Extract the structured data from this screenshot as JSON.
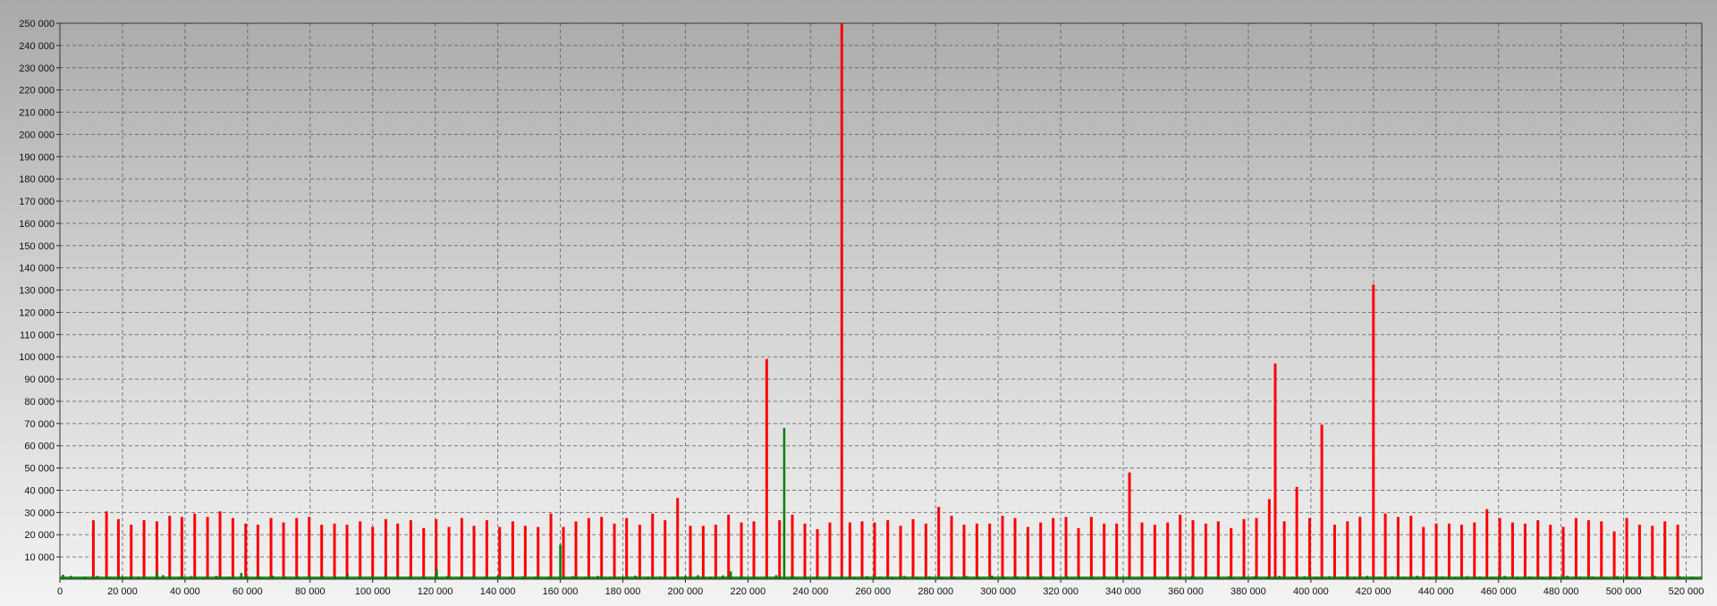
{
  "chart_data": {
    "type": "bar",
    "title": "",
    "xlabel": "",
    "ylabel": "",
    "xlim": [
      0,
      525000
    ],
    "ylim": [
      0,
      250000
    ],
    "grid": true,
    "legend": "none",
    "x_ticks": [
      "0",
      "20 000",
      "40 000",
      "60 000",
      "80 000",
      "100 000",
      "120 000",
      "140 000",
      "160 000",
      "180 000",
      "200 000",
      "220 000",
      "240 000",
      "260 000",
      "280 000",
      "300 000",
      "320 000",
      "340 000",
      "360 000",
      "380 000",
      "400 000",
      "420 000",
      "440 000",
      "460 000",
      "480 000",
      "500 000",
      "520 000"
    ],
    "y_ticks": [
      "10 000",
      "20 000",
      "30 000",
      "40 000",
      "50 000",
      "60 000",
      "70 000",
      "80 000",
      "90 000",
      "100 000",
      "110 000",
      "120 000",
      "130 000",
      "140 000",
      "150 000",
      "160 000",
      "170 000",
      "180 000",
      "190 000",
      "200 000",
      "210 000",
      "220 000",
      "230 000",
      "240 000",
      "250 000"
    ],
    "series": [
      {
        "color": "#ff0000",
        "points": [
          [
            10700,
            26500
          ],
          [
            14900,
            30500
          ],
          [
            18700,
            27000
          ],
          [
            22800,
            24500
          ],
          [
            26900,
            26500
          ],
          [
            31000,
            26000
          ],
          [
            35100,
            28500
          ],
          [
            39000,
            28000
          ],
          [
            43100,
            29500
          ],
          [
            47200,
            28000
          ],
          [
            51200,
            30500
          ],
          [
            55300,
            27500
          ],
          [
            59400,
            25000
          ],
          [
            63300,
            24500
          ],
          [
            67500,
            27500
          ],
          [
            71500,
            25500
          ],
          [
            75700,
            27500
          ],
          [
            79700,
            28000
          ],
          [
            83700,
            24500
          ],
          [
            87800,
            25000
          ],
          [
            91800,
            24500
          ],
          [
            96000,
            26000
          ],
          [
            100000,
            23500
          ],
          [
            104200,
            27000
          ],
          [
            108000,
            25000
          ],
          [
            112200,
            26500
          ],
          [
            116300,
            23000
          ],
          [
            120300,
            27000
          ],
          [
            124400,
            23500
          ],
          [
            128500,
            27500
          ],
          [
            132400,
            24000
          ],
          [
            136500,
            26500
          ],
          [
            140600,
            23500
          ],
          [
            144800,
            26000
          ],
          [
            148800,
            24000
          ],
          [
            152900,
            23500
          ],
          [
            157000,
            29500
          ],
          [
            161000,
            23500
          ],
          [
            165000,
            26000
          ],
          [
            169100,
            27500
          ],
          [
            173200,
            28000
          ],
          [
            177300,
            25000
          ],
          [
            181200,
            27500
          ],
          [
            185400,
            24500
          ],
          [
            189500,
            29500
          ],
          [
            193500,
            26500
          ],
          [
            197500,
            36500
          ],
          [
            201600,
            24000
          ],
          [
            205700,
            24000
          ],
          [
            209700,
            24500
          ],
          [
            213800,
            29000
          ],
          [
            217900,
            25500
          ],
          [
            221900,
            26000
          ],
          [
            226000,
            99000
          ],
          [
            230100,
            26500
          ],
          [
            234200,
            29000
          ],
          [
            238200,
            25000
          ],
          [
            242200,
            22500
          ],
          [
            246200,
            25500
          ],
          [
            250000,
            250000
          ],
          [
            252600,
            25500
          ],
          [
            256500,
            26000
          ],
          [
            260500,
            25500
          ],
          [
            264700,
            26500
          ],
          [
            268800,
            24000
          ],
          [
            272800,
            27000
          ],
          [
            276900,
            25000
          ],
          [
            281000,
            32500
          ],
          [
            285100,
            28500
          ],
          [
            289100,
            24500
          ],
          [
            293200,
            25000
          ],
          [
            297300,
            25000
          ],
          [
            301400,
            28500
          ],
          [
            305400,
            27500
          ],
          [
            309500,
            23500
          ],
          [
            313600,
            25500
          ],
          [
            317600,
            27500
          ],
          [
            321700,
            28000
          ],
          [
            325700,
            23000
          ],
          [
            329800,
            28000
          ],
          [
            333900,
            25000
          ],
          [
            337900,
            25000
          ],
          [
            342000,
            48000
          ],
          [
            346000,
            25500
          ],
          [
            350100,
            24500
          ],
          [
            354200,
            25500
          ],
          [
            358200,
            29000
          ],
          [
            362300,
            26500
          ],
          [
            366400,
            25000
          ],
          [
            370400,
            26000
          ],
          [
            374500,
            23000
          ],
          [
            378600,
            27000
          ],
          [
            382600,
            27500
          ],
          [
            386700,
            36000
          ],
          [
            388600,
            97000
          ],
          [
            391500,
            26000
          ],
          [
            395500,
            41500
          ],
          [
            399600,
            27500
          ],
          [
            403500,
            69500
          ],
          [
            407600,
            24500
          ],
          [
            411700,
            26000
          ],
          [
            415700,
            28000
          ],
          [
            420000,
            132500
          ],
          [
            423800,
            29500
          ],
          [
            427900,
            28000
          ],
          [
            432000,
            28500
          ],
          [
            436000,
            23500
          ],
          [
            440100,
            25000
          ],
          [
            444200,
            25000
          ],
          [
            448200,
            24500
          ],
          [
            452300,
            25500
          ],
          [
            456300,
            31500
          ],
          [
            460400,
            27500
          ],
          [
            464500,
            25500
          ],
          [
            468500,
            25000
          ],
          [
            472600,
            26500
          ],
          [
            476600,
            24500
          ],
          [
            480700,
            23500
          ],
          [
            484800,
            27500
          ],
          [
            488800,
            26500
          ],
          [
            492900,
            26000
          ],
          [
            497000,
            21500
          ],
          [
            501000,
            27500
          ],
          [
            505100,
            24500
          ],
          [
            509200,
            24000
          ],
          [
            513200,
            26000
          ],
          [
            517300,
            24500
          ]
        ]
      },
      {
        "color": "#008000",
        "points": [
          [
            1000,
            2000
          ],
          [
            3500,
            1500
          ],
          [
            8000,
            1200
          ],
          [
            12000,
            1500
          ],
          [
            16000,
            1000
          ],
          [
            20000,
            1300
          ],
          [
            25000,
            1100
          ],
          [
            31000,
            3000
          ],
          [
            33000,
            1800
          ],
          [
            38000,
            1000
          ],
          [
            42000,
            1400
          ],
          [
            46000,
            900
          ],
          [
            50000,
            1500
          ],
          [
            54000,
            1100
          ],
          [
            58000,
            2800
          ],
          [
            60000,
            1200
          ],
          [
            64000,
            1000
          ],
          [
            68000,
            1600
          ],
          [
            72000,
            1100
          ],
          [
            76000,
            1300
          ],
          [
            80000,
            1000
          ],
          [
            84000,
            1500
          ],
          [
            88000,
            1200
          ],
          [
            92000,
            2200
          ],
          [
            96000,
            1000
          ],
          [
            100000,
            1300
          ],
          [
            104000,
            1600
          ],
          [
            108000,
            1000
          ],
          [
            112000,
            1400
          ],
          [
            116000,
            1200
          ],
          [
            120500,
            4500
          ],
          [
            124000,
            1500
          ],
          [
            128000,
            1000
          ],
          [
            132000,
            1300
          ],
          [
            136000,
            1100
          ],
          [
            140000,
            1500
          ],
          [
            144000,
            1000
          ],
          [
            148000,
            1300
          ],
          [
            152000,
            1200
          ],
          [
            156000,
            1000
          ],
          [
            160000,
            15500
          ],
          [
            164000,
            1400
          ],
          [
            168000,
            1100
          ],
          [
            172000,
            1500
          ],
          [
            176000,
            1200
          ],
          [
            180000,
            1000
          ],
          [
            184000,
            1600
          ],
          [
            188000,
            1200
          ],
          [
            192000,
            1300
          ],
          [
            196000,
            1000
          ],
          [
            200000,
            1500
          ],
          [
            204000,
            1800
          ],
          [
            208000,
            1100
          ],
          [
            212000,
            1700
          ],
          [
            214500,
            3500
          ],
          [
            218000,
            1500
          ],
          [
            222000,
            1200
          ],
          [
            226000,
            1500
          ],
          [
            229000,
            1800
          ],
          [
            231600,
            68000
          ],
          [
            234000,
            1500
          ],
          [
            238000,
            1200
          ],
          [
            242000,
            1000
          ],
          [
            246000,
            1300
          ],
          [
            250000,
            1500
          ],
          [
            254000,
            1000
          ],
          [
            258000,
            1400
          ],
          [
            262000,
            1200
          ],
          [
            266000,
            1000
          ],
          [
            270000,
            1500
          ],
          [
            274000,
            1100
          ],
          [
            278000,
            1300
          ],
          [
            282000,
            1000
          ],
          [
            286000,
            1200
          ],
          [
            290000,
            1400
          ],
          [
            294000,
            1000
          ],
          [
            298000,
            1600
          ],
          [
            302000,
            1100
          ],
          [
            306000,
            1300
          ],
          [
            310000,
            1000
          ],
          [
            314000,
            1500
          ],
          [
            318000,
            1100
          ],
          [
            322000,
            1300
          ],
          [
            326000,
            1000
          ],
          [
            330000,
            1200
          ],
          [
            334000,
            1500
          ],
          [
            338000,
            1100
          ],
          [
            342000,
            1000
          ],
          [
            346000,
            1400
          ],
          [
            350000,
            1100
          ],
          [
            354000,
            1300
          ],
          [
            358000,
            1000
          ],
          [
            362000,
            1500
          ],
          [
            366000,
            1200
          ],
          [
            370000,
            1000
          ],
          [
            374000,
            1400
          ],
          [
            378000,
            1100
          ],
          [
            382000,
            1300
          ],
          [
            386000,
            1000
          ],
          [
            390000,
            1500
          ],
          [
            394000,
            1100
          ],
          [
            398000,
            1300
          ],
          [
            402000,
            1000
          ],
          [
            406000,
            1400
          ],
          [
            410000,
            1200
          ],
          [
            414000,
            1000
          ],
          [
            418000,
            1500
          ],
          [
            422000,
            1100
          ],
          [
            426000,
            1300
          ],
          [
            430000,
            1000
          ],
          [
            434000,
            1500
          ],
          [
            438000,
            1100
          ],
          [
            442000,
            1300
          ],
          [
            446000,
            1000
          ],
          [
            450000,
            1400
          ],
          [
            454000,
            1200
          ],
          [
            458000,
            1000
          ],
          [
            462000,
            1500
          ],
          [
            466000,
            1100
          ],
          [
            470000,
            1300
          ],
          [
            474000,
            1000
          ],
          [
            478000,
            1200
          ],
          [
            482000,
            1500
          ],
          [
            486000,
            1100
          ],
          [
            490000,
            1300
          ],
          [
            494000,
            1000
          ],
          [
            498000,
            1400
          ],
          [
            502000,
            1200
          ],
          [
            506000,
            1000
          ],
          [
            510000,
            1500
          ],
          [
            514000,
            1100
          ],
          [
            518000,
            1300
          ],
          [
            522000,
            1000
          ]
        ]
      }
    ]
  }
}
